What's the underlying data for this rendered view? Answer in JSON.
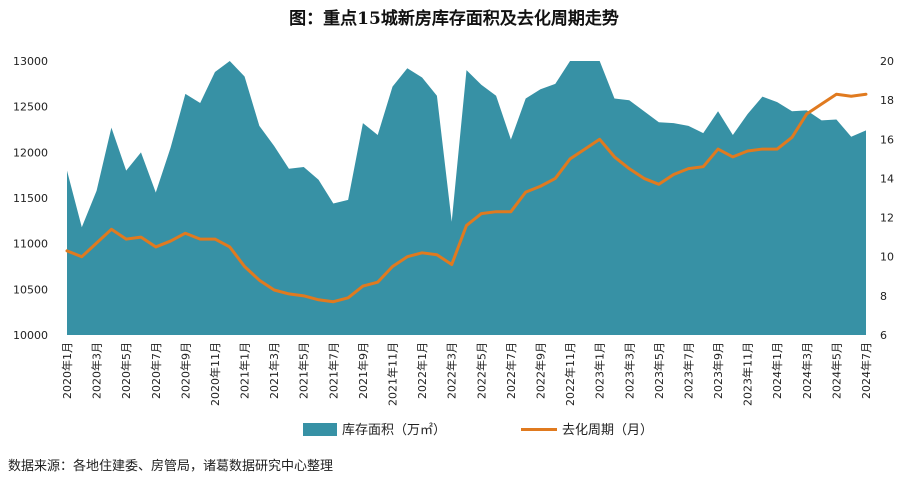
{
  "chart_data": {
    "type": "area",
    "title": "图：重点15城新房库存面积及去化周期走势",
    "categories": [
      "2020年1月",
      "2020年2月",
      "2020年3月",
      "2020年4月",
      "2020年5月",
      "2020年6月",
      "2020年7月",
      "2020年8月",
      "2020年9月",
      "2020年10月",
      "2020年11月",
      "2020年12月",
      "2021年1月",
      "2021年2月",
      "2021年3月",
      "2021年4月",
      "2021年5月",
      "2021年6月",
      "2021年7月",
      "2021年8月",
      "2021年9月",
      "2021年10月",
      "2021年11月",
      "2021年12月",
      "2022年1月",
      "2022年2月",
      "2022年3月",
      "2022年4月",
      "2022年5月",
      "2022年6月",
      "2022年7月",
      "2022年8月",
      "2022年9月",
      "2022年10月",
      "2022年11月",
      "2022年12月",
      "2023年1月",
      "2023年2月",
      "2023年3月",
      "2023年4月",
      "2023年5月",
      "2023年6月",
      "2023年7月",
      "2023年8月",
      "2023年9月",
      "2023年10月",
      "2023年11月",
      "2023年12月",
      "2024年1月",
      "2024年2月",
      "2024年3月",
      "2024年4月",
      "2024年5月",
      "2024年6月",
      "2024年7月"
    ],
    "x_tick_labels": [
      "2020年1月",
      "2020年3月",
      "2020年5月",
      "2020年7月",
      "2020年9月",
      "2020年11月",
      "2021年1月",
      "2021年3月",
      "2021年5月",
      "2021年7月",
      "2021年9月",
      "2021年11月",
      "2022年1月",
      "2022年3月",
      "2022年5月",
      "2022年7月",
      "2022年9月",
      "2022年11月",
      "2023年1月",
      "2023年3月",
      "2023年5月",
      "2023年7月",
      "2023年9月",
      "2023年11月",
      "2024年1月",
      "2024年3月",
      "2024年5月",
      "2024年7月"
    ],
    "series": [
      {
        "name": "库存面积（万㎡）",
        "type": "area",
        "axis": "left",
        "color": "#3791a5",
        "values": [
          11800,
          11180,
          11580,
          12270,
          11800,
          12000,
          11560,
          12050,
          12640,
          12540,
          12880,
          13020,
          12830,
          12290,
          12070,
          11820,
          11840,
          11700,
          11440,
          11480,
          12320,
          12190,
          12720,
          12920,
          12820,
          12620,
          11240,
          12900,
          12740,
          12620,
          12140,
          12590,
          12690,
          12750,
          13020,
          13020,
          13000,
          12590,
          12570,
          12450,
          12330,
          12320,
          12290,
          12210,
          12450,
          12190,
          12420,
          12610,
          12550,
          12450,
          12460,
          12350,
          12360,
          12170,
          12240
        ]
      },
      {
        "name": "去化周期（月）",
        "type": "line",
        "axis": "right",
        "color": "#e07a1f",
        "values": [
          10.3,
          10.0,
          10.7,
          11.4,
          10.9,
          11.0,
          10.5,
          10.8,
          11.2,
          10.9,
          10.9,
          10.5,
          9.5,
          8.8,
          8.3,
          8.1,
          8.0,
          7.8,
          7.7,
          7.9,
          8.5,
          8.7,
          9.5,
          10.0,
          10.2,
          10.1,
          9.6,
          11.6,
          12.2,
          12.3,
          12.3,
          13.3,
          13.6,
          14.0,
          15.0,
          15.5,
          16.0,
          15.1,
          14.5,
          14.0,
          13.7,
          14.2,
          14.5,
          14.6,
          15.5,
          15.1,
          15.4,
          15.5,
          15.5,
          16.1,
          17.3,
          17.8,
          18.3,
          18.2,
          18.3
        ]
      }
    ],
    "y_left": {
      "min": 10000,
      "max": 13000,
      "ticks": [
        "10000",
        "10500",
        "11000",
        "11500",
        "12000",
        "12500",
        "13000"
      ]
    },
    "y_right": {
      "min": 6,
      "max": 20,
      "ticks": [
        "6",
        "8",
        "10",
        "12",
        "14",
        "16",
        "18",
        "20"
      ]
    },
    "legend": [
      {
        "label": "库存面积（万㎡）",
        "color": "#3791a5"
      },
      {
        "label": "去化周期（月）",
        "color": "#e07a1f"
      }
    ],
    "legend_position": "bottom",
    "grid": false
  },
  "source_note": "数据来源：各地住建委、房管局，诸葛数据研究中心整理"
}
